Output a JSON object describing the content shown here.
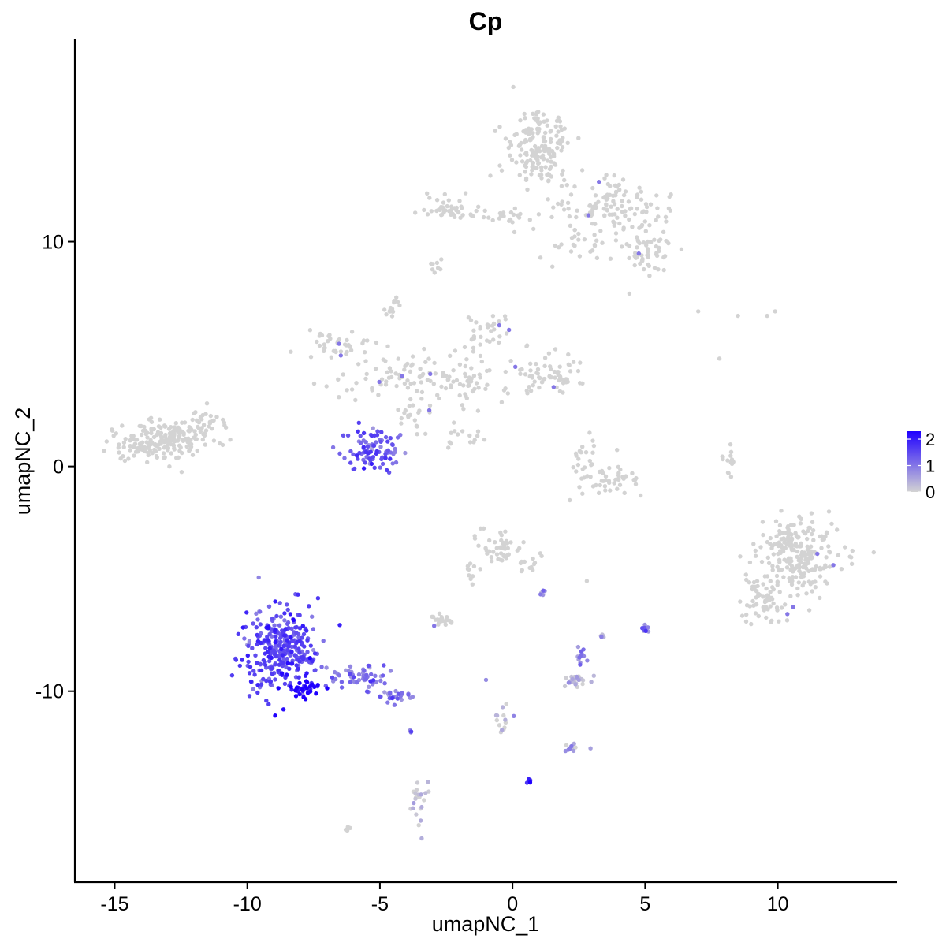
{
  "chart_data": {
    "type": "scatter",
    "title": "Cp",
    "xlabel": "umapNC_1",
    "ylabel": "umapNC_2",
    "xlim": [
      -16.5,
      14.5
    ],
    "ylim": [
      -18.5,
      19
    ],
    "x_ticks": [
      -15,
      -10,
      -5,
      0,
      5,
      10
    ],
    "x_tick_labels": [
      "-15",
      "-10",
      "-5",
      "0",
      "5",
      "10"
    ],
    "y_ticks": [
      -10,
      0,
      10
    ],
    "y_tick_labels": [
      "-10",
      "0",
      "10"
    ],
    "grid": false,
    "legend_position": "right",
    "color_scale": {
      "low_color": "#d3d3d3",
      "high_color": "#1f00ff",
      "min": 0,
      "max": 2.3,
      "ticks": [
        0,
        1,
        2
      ],
      "tick_labels": [
        "0",
        "1",
        "2"
      ]
    },
    "clusters": [
      {
        "cx": 1.0,
        "cy": 14.2,
        "sx": 0.6,
        "sy": 0.9,
        "n": 170,
        "expr": 0
      },
      {
        "cx": 3.8,
        "cy": 11.5,
        "sx": 0.9,
        "sy": 0.6,
        "n": 120,
        "expr": 0
      },
      {
        "cx": 5.1,
        "cy": 9.5,
        "sx": 0.5,
        "sy": 0.5,
        "n": 55,
        "expr": 0
      },
      {
        "cx": -2.5,
        "cy": 11.5,
        "sx": 0.5,
        "sy": 0.3,
        "n": 35,
        "expr": 0
      },
      {
        "cx": -0.5,
        "cy": 11.2,
        "sx": 1.0,
        "sy": 0.2,
        "n": 30,
        "expr": 0
      },
      {
        "cx": 2.5,
        "cy": 9.8,
        "sx": 0.7,
        "sy": 0.5,
        "n": 25,
        "expr": 0
      },
      {
        "cx": -3.0,
        "cy": 8.9,
        "sx": 0.15,
        "sy": 0.15,
        "n": 8,
        "expr": 0
      },
      {
        "cx": -6.5,
        "cy": 5.4,
        "sx": 0.6,
        "sy": 0.4,
        "n": 40,
        "expr": 0
      },
      {
        "cx": -4.5,
        "cy": 4.0,
        "sx": 1.0,
        "sy": 0.5,
        "n": 70,
        "expr": 0
      },
      {
        "cx": -4.6,
        "cy": 7.1,
        "sx": 0.15,
        "sy": 0.3,
        "n": 15,
        "expr": 0
      },
      {
        "cx": -2.0,
        "cy": 3.8,
        "sx": 0.7,
        "sy": 0.6,
        "n": 60,
        "expr": 0
      },
      {
        "cx": -1.0,
        "cy": 5.8,
        "sx": 0.5,
        "sy": 0.4,
        "n": 35,
        "expr": 0
      },
      {
        "cx": 1.0,
        "cy": 4.3,
        "sx": 0.7,
        "sy": 0.5,
        "n": 45,
        "expr": 0
      },
      {
        "cx": 2.0,
        "cy": 4.0,
        "sx": 0.5,
        "sy": 0.4,
        "n": 25,
        "expr": 0
      },
      {
        "cx": -3.8,
        "cy": 2.2,
        "sx": 0.3,
        "sy": 0.5,
        "n": 18,
        "expr": 0
      },
      {
        "cx": -1.5,
        "cy": 1.3,
        "sx": 0.5,
        "sy": 0.3,
        "n": 15,
        "expr": 0
      },
      {
        "cx": -5.2,
        "cy": 0.7,
        "sx": 0.5,
        "sy": 0.6,
        "n": 90,
        "expr": 1.3
      },
      {
        "cx": -13.0,
        "cy": 1.2,
        "sx": 0.9,
        "sy": 0.45,
        "n": 170,
        "expr": 0
      },
      {
        "cx": -14.2,
        "cy": 0.8,
        "sx": 0.5,
        "sy": 0.3,
        "n": 40,
        "expr": 0
      },
      {
        "cx": -11.6,
        "cy": 1.8,
        "sx": 0.4,
        "sy": 0.4,
        "n": 30,
        "expr": 0
      },
      {
        "cx": 3.6,
        "cy": -0.6,
        "sx": 0.7,
        "sy": 0.35,
        "n": 45,
        "expr": 0
      },
      {
        "cx": 2.8,
        "cy": 0.5,
        "sx": 0.3,
        "sy": 0.4,
        "n": 20,
        "expr": 0
      },
      {
        "cx": 8.2,
        "cy": 0.4,
        "sx": 0.12,
        "sy": 0.4,
        "n": 15,
        "expr": 0
      },
      {
        "cx": 10.8,
        "cy": -4.0,
        "sx": 0.75,
        "sy": 0.8,
        "n": 240,
        "expr": 0
      },
      {
        "cx": 9.5,
        "cy": -6.0,
        "sx": 0.6,
        "sy": 0.5,
        "n": 60,
        "expr": 0
      },
      {
        "cx": -0.5,
        "cy": -3.5,
        "sx": 0.35,
        "sy": 0.4,
        "n": 45,
        "expr": 0
      },
      {
        "cx": 0.5,
        "cy": -4.3,
        "sx": 0.3,
        "sy": 0.3,
        "n": 15,
        "expr": 0
      },
      {
        "cx": -1.5,
        "cy": -4.8,
        "sx": 0.2,
        "sy": 0.4,
        "n": 10,
        "expr": 0
      },
      {
        "cx": -2.6,
        "cy": -6.8,
        "sx": 0.25,
        "sy": 0.15,
        "n": 20,
        "expr": 0
      },
      {
        "cx": -8.7,
        "cy": -8.2,
        "sx": 0.75,
        "sy": 0.9,
        "n": 320,
        "expr": 1.5
      },
      {
        "cx": -7.9,
        "cy": -9.9,
        "sx": 0.3,
        "sy": 0.15,
        "n": 35,
        "expr": 2.2
      },
      {
        "cx": -5.8,
        "cy": -9.4,
        "sx": 0.6,
        "sy": 0.25,
        "n": 55,
        "expr": 1.0
      },
      {
        "cx": -4.4,
        "cy": -10.2,
        "sx": 0.3,
        "sy": 0.15,
        "n": 25,
        "expr": 1.1
      },
      {
        "cx": 2.3,
        "cy": -9.5,
        "sx": 0.3,
        "sy": 0.15,
        "n": 30,
        "expr": 0.2
      },
      {
        "cx": 2.6,
        "cy": -8.5,
        "sx": 0.15,
        "sy": 0.25,
        "n": 12,
        "expr": 0.7
      },
      {
        "cx": 5.0,
        "cy": -7.2,
        "sx": 0.05,
        "sy": 0.2,
        "n": 12,
        "expr": 0.9
      },
      {
        "cx": 3.4,
        "cy": -7.5,
        "sx": 0.05,
        "sy": 0.1,
        "n": 5,
        "expr": 0.6
      },
      {
        "cx": -0.4,
        "cy": -11.4,
        "sx": 0.2,
        "sy": 0.4,
        "n": 14,
        "expr": 0.2
      },
      {
        "cx": 2.3,
        "cy": -12.5,
        "sx": 0.25,
        "sy": 0.1,
        "n": 12,
        "expr": 0.5
      },
      {
        "cx": 0.6,
        "cy": -14.0,
        "sx": 0.05,
        "sy": 0.05,
        "n": 6,
        "expr": 2.0
      },
      {
        "cx": -3.6,
        "cy": -15.0,
        "sx": 0.2,
        "sy": 0.5,
        "n": 22,
        "expr": 0.2
      },
      {
        "cx": -6.2,
        "cy": -16.1,
        "sx": 0.05,
        "sy": 0.05,
        "n": 5,
        "expr": 0
      },
      {
        "cx": 1.1,
        "cy": -5.6,
        "sx": 0.05,
        "sy": 0.15,
        "n": 5,
        "expr": 1.0
      },
      {
        "cx": -3.9,
        "cy": -11.8,
        "sx": 0.05,
        "sy": 0.05,
        "n": 3,
        "expr": 1.0
      }
    ],
    "sparse_points": [
      {
        "x": 7.0,
        "y": 6.9,
        "expr": 0
      },
      {
        "x": 8.5,
        "y": 6.7,
        "expr": 0
      },
      {
        "x": 9.6,
        "y": 6.7,
        "expr": 0
      },
      {
        "x": 9.9,
        "y": 6.9,
        "expr": 0
      },
      {
        "x": 7.8,
        "y": 4.8,
        "expr": 0
      },
      {
        "x": 2.8,
        "y": -5.1,
        "expr": 0
      },
      {
        "x": -1.0,
        "y": -9.5,
        "expr": 0.8
      }
    ]
  }
}
